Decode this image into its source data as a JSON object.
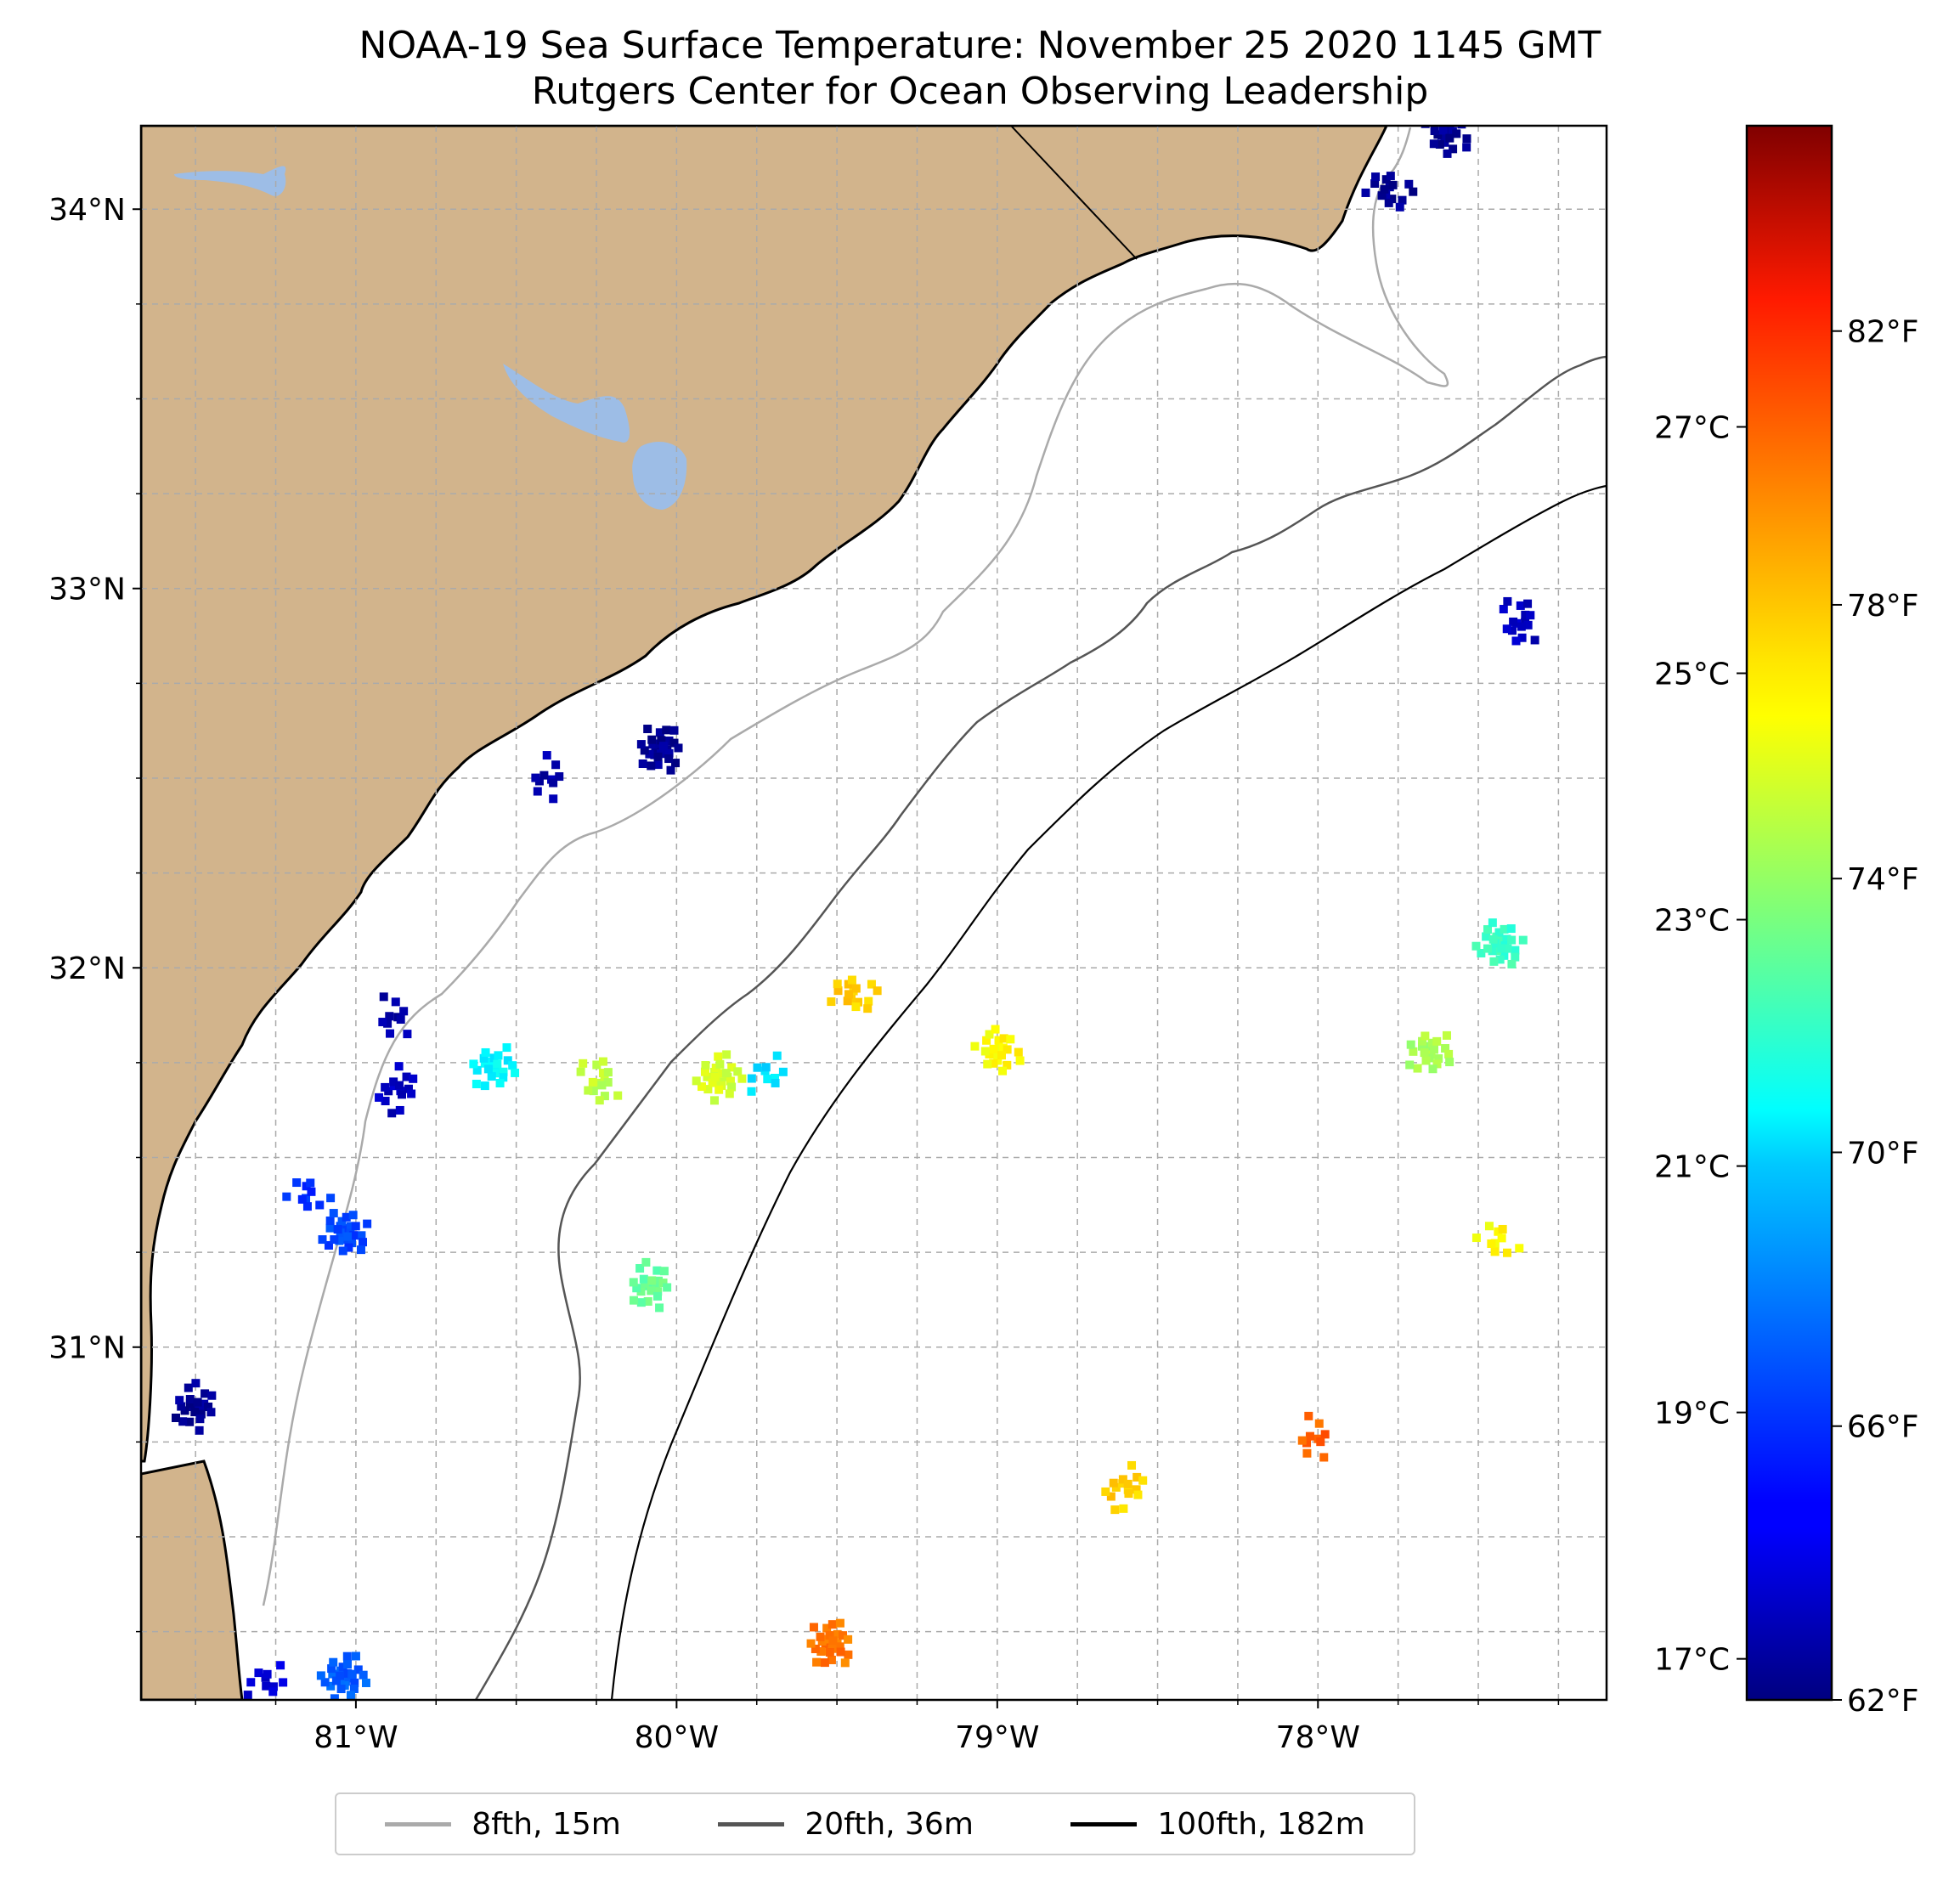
{
  "title": {
    "line1": "NOAA-19 Sea Surface Temperature: November 25 2020 1145 GMT",
    "line2": "Rutgers Center for Ocean Observing Leadership"
  },
  "map": {
    "lon_range": [
      -81.67,
      -77.1
    ],
    "lat_range": [
      30.07,
      34.22
    ],
    "lat_ticks": [
      {
        "value": 34,
        "label": "34°N"
      },
      {
        "value": 33,
        "label": "33°N"
      },
      {
        "value": 32,
        "label": "32°N"
      },
      {
        "value": 31,
        "label": "31°N"
      }
    ],
    "lon_ticks": [
      {
        "value": -81,
        "label": "81°W"
      },
      {
        "value": -80,
        "label": "80°W"
      },
      {
        "value": -79,
        "label": "79°W"
      },
      {
        "value": -78,
        "label": "78°W"
      }
    ],
    "grid": "dashed",
    "land_color": "#d2b48c",
    "water_color": "#9dbde6"
  },
  "colorbar": {
    "colormap": "jet",
    "fahrenheit_range": [
      62,
      85
    ],
    "fahrenheit_ticks": [
      {
        "value": 62,
        "label": "62°F"
      },
      {
        "value": 66,
        "label": "66°F"
      },
      {
        "value": 70,
        "label": "70°F"
      },
      {
        "value": 74,
        "label": "74°F"
      },
      {
        "value": 78,
        "label": "78°F"
      },
      {
        "value": 82,
        "label": "82°F"
      }
    ],
    "celsius_ticks": [
      {
        "value": 17,
        "label": "17°C"
      },
      {
        "value": 19,
        "label": "19°C"
      },
      {
        "value": 21,
        "label": "21°C"
      },
      {
        "value": 23,
        "label": "23°C"
      },
      {
        "value": 25,
        "label": "25°C"
      },
      {
        "value": 27,
        "label": "27°C"
      }
    ]
  },
  "legend": {
    "items": [
      {
        "label": "8fth, 15m",
        "color": "#aaaaaa"
      },
      {
        "label": "20fth, 36m",
        "color": "#555555"
      },
      {
        "label": "100fth, 182m",
        "color": "#000000"
      }
    ]
  },
  "chart_data": {
    "type": "heatmap",
    "title": "NOAA-19 Sea Surface Temperature: November 25 2020 1145 GMT",
    "subtitle": "Rutgers Center for Ocean Observing Leadership",
    "xlabel": "",
    "ylabel": "",
    "units": "°F",
    "observations": [
      {
        "lon": -80.88,
        "lat": 31.87,
        "tempF": 63.0
      },
      {
        "lon": -80.87,
        "lat": 31.68,
        "tempF": 63.5
      },
      {
        "lon": -80.57,
        "lat": 31.74,
        "tempF": 70.5
      },
      {
        "lon": -81.03,
        "lat": 31.3,
        "tempF": 66.5
      },
      {
        "lon": -81.15,
        "lat": 31.4,
        "tempF": 66.0
      },
      {
        "lon": -80.24,
        "lat": 31.7,
        "tempF": 75.0
      },
      {
        "lon": -80.08,
        "lat": 31.16,
        "tempF": 73.0
      },
      {
        "lon": -79.87,
        "lat": 31.71,
        "tempF": 75.5
      },
      {
        "lon": -79.72,
        "lat": 31.72,
        "tempF": 70.0
      },
      {
        "lon": -79.45,
        "lat": 31.93,
        "tempF": 77.5
      },
      {
        "lon": -79.0,
        "lat": 31.78,
        "tempF": 76.5
      },
      {
        "lon": -79.52,
        "lat": 30.22,
        "tempF": 79.5
      },
      {
        "lon": -78.01,
        "lat": 30.76,
        "tempF": 80.0
      },
      {
        "lon": -78.6,
        "lat": 30.63,
        "tempF": 77.5
      },
      {
        "lon": -77.65,
        "lat": 31.78,
        "tempF": 74.5
      },
      {
        "lon": -77.43,
        "lat": 32.06,
        "tempF": 72.0
      },
      {
        "lon": -77.44,
        "lat": 31.28,
        "tempF": 76.5
      },
      {
        "lon": -77.37,
        "lat": 32.91,
        "tempF": 63.5
      },
      {
        "lon": -81.5,
        "lat": 30.84,
        "tempF": 62.5
      },
      {
        "lon": -81.04,
        "lat": 30.13,
        "tempF": 67.0
      },
      {
        "lon": -81.28,
        "lat": 30.12,
        "tempF": 64.0
      },
      {
        "lon": -77.78,
        "lat": 34.05,
        "tempF": 62.5
      },
      {
        "lon": -77.6,
        "lat": 34.2,
        "tempF": 62.5
      },
      {
        "lon": -80.05,
        "lat": 32.58,
        "tempF": 62.5
      },
      {
        "lon": -80.4,
        "lat": 32.5,
        "tempF": 63.0
      }
    ]
  }
}
